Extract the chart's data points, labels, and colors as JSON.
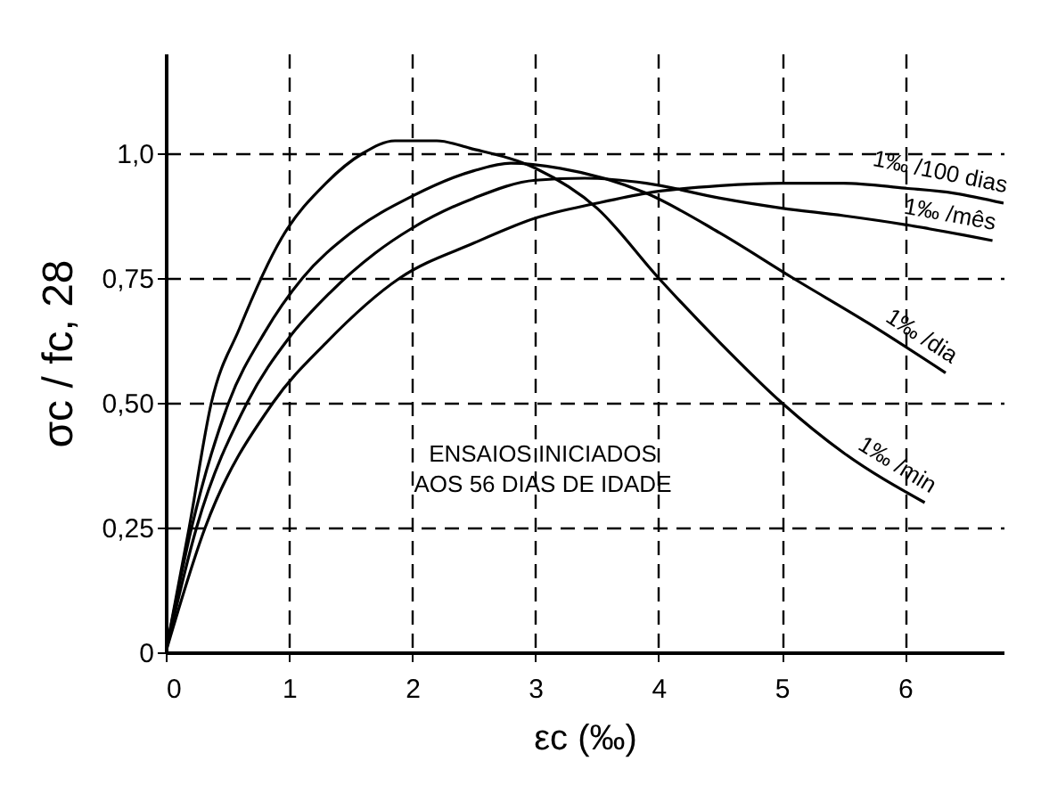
{
  "chart_data": {
    "type": "line",
    "xlabel": "εc (‰)",
    "ylabel": "σc / fc, 28",
    "xlim": [
      0,
      6.8
    ],
    "ylim": [
      0,
      1.2
    ],
    "xticks": [
      0,
      1,
      2,
      3,
      4,
      5,
      6
    ],
    "yticks": [
      0,
      {
        "value": 0.25,
        "label": "0,25"
      },
      {
        "value": 0.5,
        "label": "0,50"
      },
      {
        "value": 0.75,
        "label": "0,75"
      },
      {
        "value": 1,
        "label": "1,0"
      }
    ],
    "grid": true,
    "marker": "none",
    "line_style": "solid",
    "annotations": [
      "ENSAIOS INICIADOS\nAOS 56 DIAS DE IDADE"
    ],
    "series": [
      {
        "name": "1‰ /min",
        "color": "#000000",
        "x": [
          0,
          0.19,
          0.37,
          0.6,
          0.94,
          1.3,
          1.6,
          1.86,
          2.2,
          2.47,
          3,
          3.5,
          4,
          4.5,
          5,
          5.5,
          6.16
        ],
        "values": [
          0,
          0.25,
          0.5,
          0.65,
          0.83,
          0.94,
          1.0,
          1.025,
          1.025,
          1.01,
          0.97,
          0.89,
          0.75,
          0.62,
          0.5,
          0.4,
          0.3
        ]
      },
      {
        "name": "1‰ /dia",
        "color": "#000000",
        "x": [
          0,
          0.21,
          0.51,
          0.8,
          1.11,
          1.5,
          2,
          2.5,
          2.8,
          3.2,
          3.9,
          4.5,
          5.09,
          5.7,
          6.33
        ],
        "values": [
          0,
          0.25,
          0.5,
          0.64,
          0.75,
          0.84,
          0.914,
          0.965,
          0.98,
          0.97,
          0.92,
          0.84,
          0.75,
          0.66,
          0.56
        ]
      },
      {
        "name": "1‰ /mês",
        "color": "#000000",
        "x": [
          0,
          0.25,
          0.66,
          1,
          1.33,
          1.7,
          2,
          2.5,
          3,
          3.4,
          3.9,
          4.5,
          5,
          5.5,
          6,
          6.71
        ],
        "values": [
          0,
          0.25,
          0.5,
          0.63,
          0.72,
          0.8,
          0.85,
          0.91,
          0.946,
          0.95,
          0.94,
          0.91,
          0.89,
          0.875,
          0.857,
          0.825
        ]
      },
      {
        "name": "1‰ /100 dias",
        "color": "#000000",
        "x": [
          0,
          0.32,
          0.87,
          1.3,
          1.9,
          2.5,
          3,
          3.5,
          3.9,
          4.5,
          5,
          5.5,
          6,
          6.4,
          6.8
        ],
        "values": [
          0,
          0.25,
          0.5,
          0.62,
          0.75,
          0.82,
          0.87,
          0.9,
          0.92,
          0.935,
          0.94,
          0.94,
          0.93,
          0.92,
          0.9
        ]
      }
    ]
  }
}
